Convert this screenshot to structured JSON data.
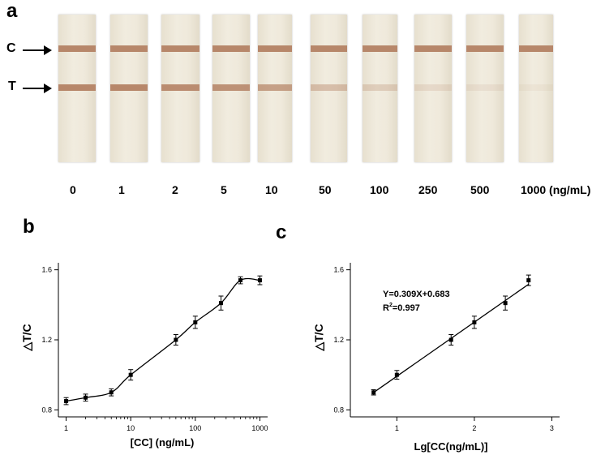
{
  "panel_a": {
    "label": "a",
    "c_label": "C",
    "t_label": "T",
    "concentrations": [
      "0",
      "1",
      "2",
      "5",
      "10",
      "50",
      "100",
      "250",
      "500",
      "1000 (ng/mL)"
    ],
    "test_line_intensity": [
      1.0,
      1.0,
      0.95,
      0.9,
      0.75,
      0.45,
      0.3,
      0.18,
      0.12,
      0.08
    ],
    "colors": {
      "strip": "#efe9db",
      "band": "#b7876a"
    }
  },
  "panel_b": {
    "label": "b"
  },
  "panel_c": {
    "label": "c"
  },
  "chart_data": [
    {
      "type": "line",
      "xlabel": "[CC] (ng/mL)",
      "ylabel": "△T/C",
      "xscale": "log",
      "xlim": [
        1,
        1000
      ],
      "ylim": [
        0.8,
        1.6
      ],
      "xticks": [
        1,
        10,
        100,
        1000
      ],
      "yticks": [
        0.8,
        1.2,
        1.6
      ],
      "x": [
        1,
        2,
        5,
        10,
        50,
        100,
        250,
        500,
        1000
      ],
      "y": [
        0.85,
        0.87,
        0.9,
        1.0,
        1.2,
        1.3,
        1.41,
        1.54,
        1.54
      ],
      "err": [
        0.02,
        0.02,
        0.02,
        0.03,
        0.03,
        0.035,
        0.04,
        0.02,
        0.025
      ],
      "grid": false
    },
    {
      "type": "line",
      "xlabel": "Lg[CC(ng/mL)]",
      "ylabel": "△T/C",
      "xlim": [
        0.5,
        3
      ],
      "ylim": [
        0.8,
        1.6
      ],
      "xticks": [
        1,
        2,
        3
      ],
      "yticks": [
        0.8,
        1.2,
        1.6
      ],
      "x": [
        0.7,
        1.0,
        1.7,
        2.0,
        2.4,
        2.7
      ],
      "y": [
        0.9,
        1.0,
        1.2,
        1.3,
        1.41,
        1.54
      ],
      "err": [
        0.015,
        0.025,
        0.03,
        0.035,
        0.04,
        0.03
      ],
      "fit": {
        "slope": 0.309,
        "intercept": 0.683
      },
      "annotation": "Y=0.309X+0.683",
      "r2_prefix": "R",
      "r2_sup": "2",
      "r2_value": "=0.997",
      "grid": false
    }
  ]
}
